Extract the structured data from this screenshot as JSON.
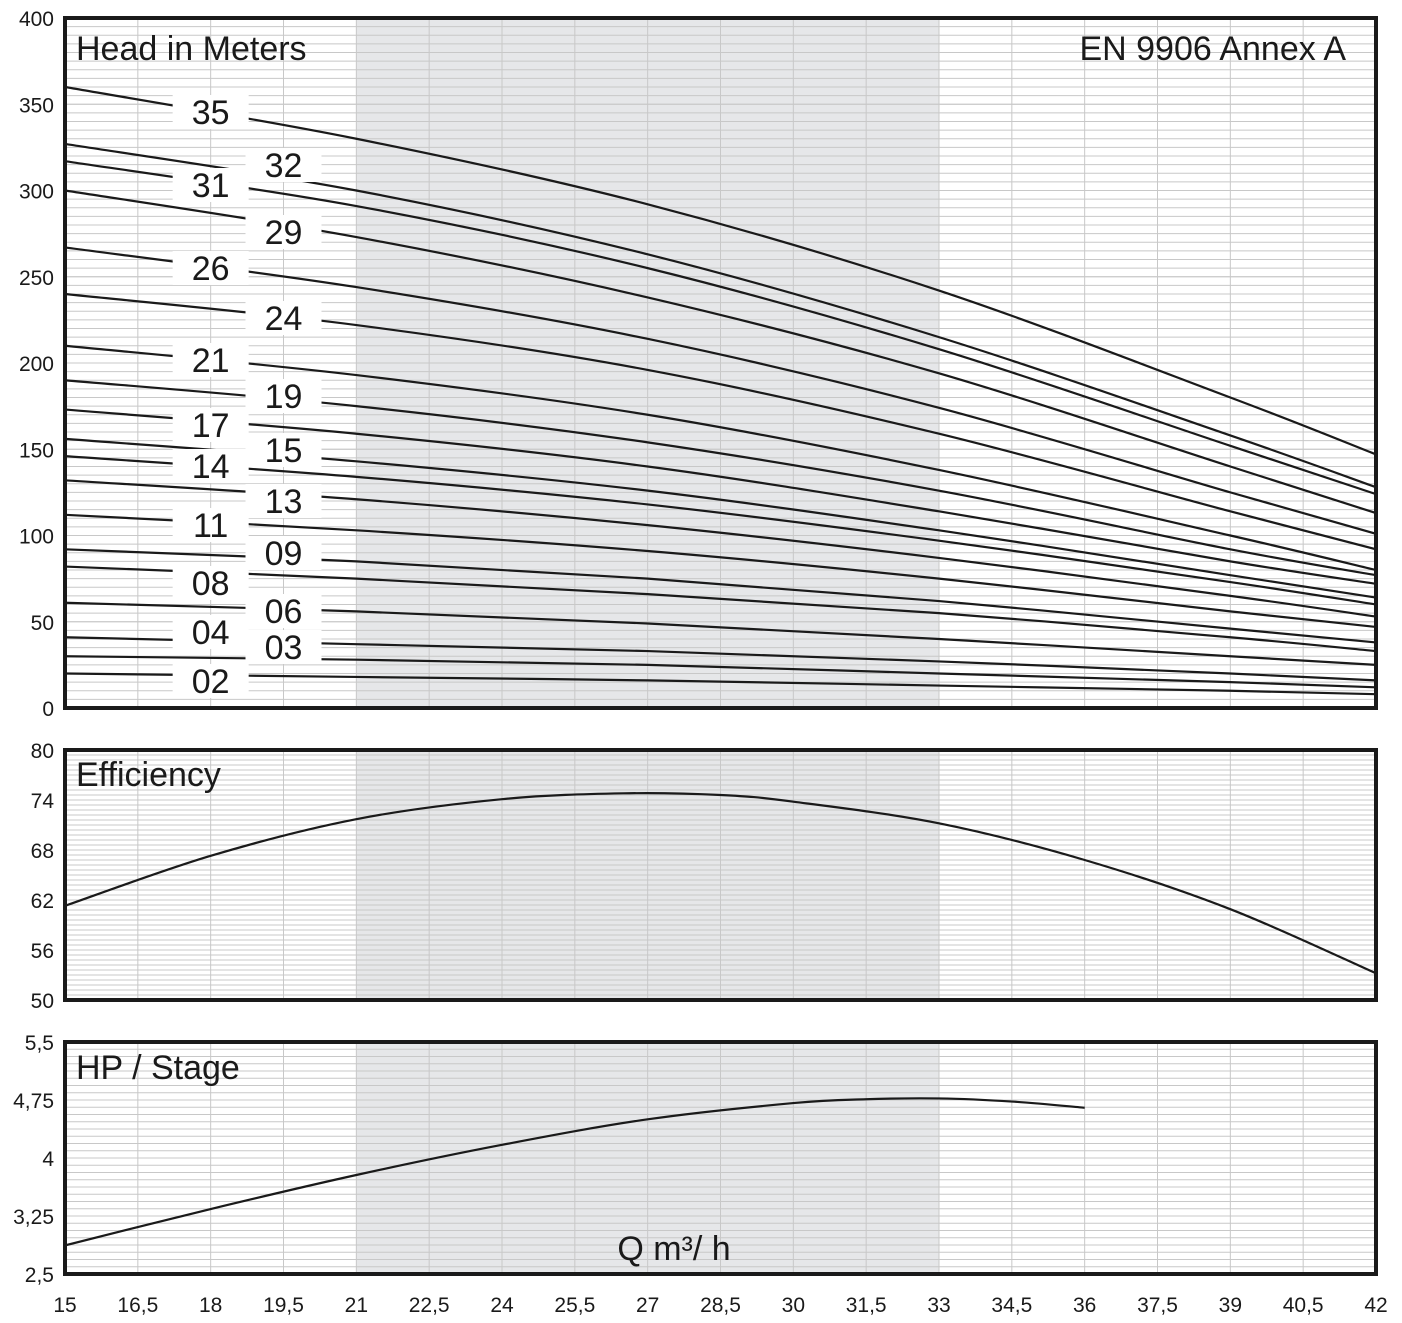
{
  "colors": {
    "curve": "#1a1a1a",
    "frame": "#1a1a1a",
    "grid": "#c8c8c8",
    "shade": "#e6e7e9",
    "background": "#ffffff"
  },
  "chart_data": [
    {
      "type": "line",
      "title": "Head in Meters",
      "annotation": "EN 9906 Annex A",
      "xlim": [
        15,
        42
      ],
      "ylim": [
        0,
        400
      ],
      "yticks": [
        0,
        50,
        100,
        150,
        200,
        250,
        300,
        350,
        400
      ],
      "ytick_labels": [
        "0",
        "50",
        "100",
        "150",
        "200",
        "250",
        "300",
        "350",
        "400"
      ],
      "shaded_range": [
        21,
        33
      ],
      "grid": true,
      "x": [
        15,
        21,
        27,
        33,
        39,
        42
      ],
      "series": [
        {
          "name": "35",
          "values": [
            360,
            330,
            292,
            242,
            180,
            147
          ]
        },
        {
          "name": "32",
          "values": [
            327,
            300,
            263,
            215,
            158,
            128
          ]
        },
        {
          "name": "31",
          "values": [
            317,
            291,
            255,
            208,
            152,
            124
          ]
        },
        {
          "name": "29",
          "values": [
            300,
            273,
            238,
            194,
            140,
            113
          ]
        },
        {
          "name": "26",
          "values": [
            267,
            244,
            214,
            174,
            125,
            101
          ]
        },
        {
          "name": "24",
          "values": [
            240,
            222,
            196,
            159,
            114,
            92
          ]
        },
        {
          "name": "21",
          "values": [
            210,
            193,
            170,
            138,
            100,
            80
          ]
        },
        {
          "name": "19",
          "values": [
            190,
            175,
            154,
            126,
            92,
            77
          ]
        },
        {
          "name": "17",
          "values": [
            173,
            159,
            140,
            114,
            85,
            72
          ]
        },
        {
          "name": "15",
          "values": [
            156,
            143,
            126,
            103,
            77,
            64
          ]
        },
        {
          "name": "14",
          "values": [
            146,
            134,
            118,
            97,
            73,
            60
          ]
        },
        {
          "name": "13",
          "values": [
            132,
            121,
            106,
            87,
            65,
            53
          ]
        },
        {
          "name": "11",
          "values": [
            112,
            103,
            91,
            75,
            56,
            47
          ]
        },
        {
          "name": "09",
          "values": [
            92,
            85,
            75,
            62,
            46,
            38
          ]
        },
        {
          "name": "08",
          "values": [
            82,
            75,
            66,
            55,
            41,
            33
          ]
        },
        {
          "name": "06",
          "values": [
            61,
            56,
            49,
            40,
            30,
            25
          ]
        },
        {
          "name": "04",
          "values": [
            41,
            37,
            33,
            27,
            20,
            16
          ]
        },
        {
          "name": "03",
          "values": [
            30,
            28,
            25,
            20,
            15,
            12
          ]
        },
        {
          "name": "02",
          "values": [
            20,
            18,
            16,
            13,
            10,
            8
          ]
        }
      ]
    },
    {
      "type": "line",
      "title": "Efficiency",
      "xlim": [
        15,
        42
      ],
      "ylim": [
        50,
        80
      ],
      "yticks": [
        50,
        56,
        62,
        68,
        74,
        80
      ],
      "ytick_labels": [
        "50",
        "56",
        "62",
        "68",
        "74",
        "80"
      ],
      "shaded_range": [
        21,
        33
      ],
      "grid": true,
      "series": [
        {
          "x": [
            15,
            18,
            21,
            24,
            26.5,
            28.5,
            30,
            33,
            36,
            39,
            42
          ],
          "values": [
            61.3,
            67.3,
            71.7,
            74.1,
            74.8,
            74.6,
            73.8,
            71.2,
            66.8,
            60.9,
            53.2
          ]
        }
      ]
    },
    {
      "type": "line",
      "title": "HP / Stage",
      "xlim": [
        15,
        42
      ],
      "ylim": [
        2.5,
        5.5
      ],
      "yticks": [
        2.5,
        3.25,
        4,
        4.75,
        5.5
      ],
      "ytick_labels": [
        "2,5",
        "3,25",
        "4",
        "4,75",
        "5,5"
      ],
      "shaded_range": [
        21,
        33
      ],
      "grid": true,
      "xlabel": "Q m³/ h",
      "xticks": [
        15,
        16.5,
        18,
        19.5,
        21,
        22.5,
        24,
        25.5,
        27,
        28.5,
        30,
        31.5,
        33,
        34.5,
        36,
        37.5,
        39,
        40.5,
        42
      ],
      "xtick_labels": [
        "15",
        "16,5",
        "18",
        "19,5",
        "21",
        "22,5",
        "24",
        "25,5",
        "27",
        "28,5",
        "30",
        "31,5",
        "33",
        "34,5",
        "36",
        "37,5",
        "39",
        "40,5",
        "42"
      ],
      "series": [
        {
          "x": [
            15,
            18,
            21,
            24,
            27,
            30,
            31.5,
            33,
            34.5,
            36
          ],
          "values": [
            2.87,
            3.34,
            3.78,
            4.17,
            4.5,
            4.71,
            4.76,
            4.77,
            4.73,
            4.65
          ]
        }
      ]
    }
  ]
}
